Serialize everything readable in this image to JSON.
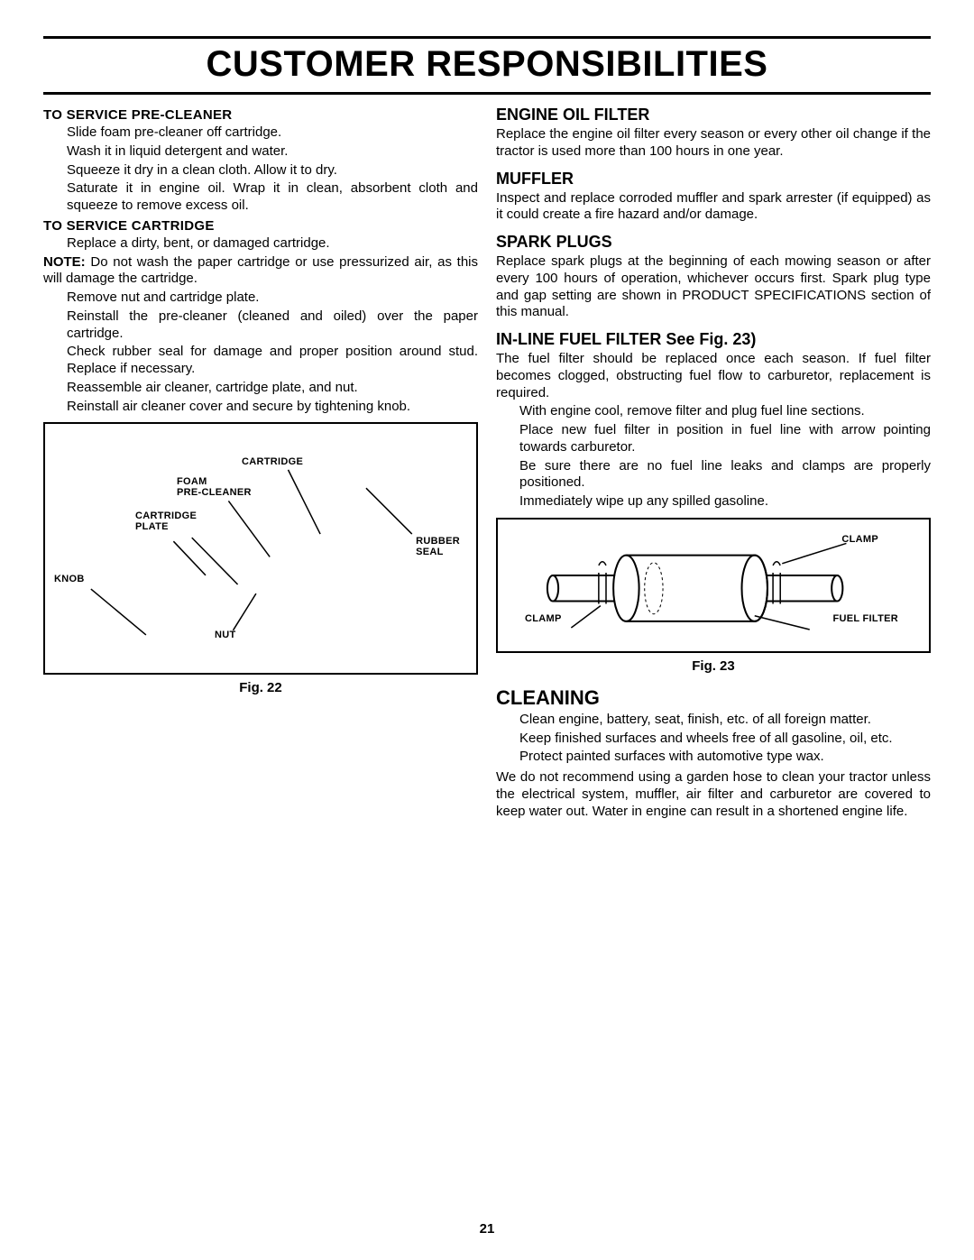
{
  "title": "CUSTOMER RESPONSIBILITIES",
  "page_number": "21",
  "left": {
    "precleaner_head": "TO SERVICE PRE-CLEANER",
    "pre1": "Slide foam pre-cleaner off cartridge.",
    "pre2": "Wash it in liquid detergent and water.",
    "pre3": "Squeeze it dry in a clean cloth.  Allow it to dry.",
    "pre4": "Saturate it in engine oil.  Wrap it in clean, absorbent cloth and squeeze to remove excess oil.",
    "cartridge_head": "TO SERVICE CARTRIDGE",
    "cart1": "Replace a dirty, bent, or damaged cartridge.",
    "note_label": "NOTE:",
    "note_text": " Do not wash the paper cartridge or use pressurized air, as this will damage the cartridge.",
    "cart2": "Remove nut and cartridge plate.",
    "cart3": "Reinstall the pre-cleaner (cleaned and oiled) over the paper cartridge.",
    "cart4": "Check rubber seal for damage and proper position around stud.  Replace if necessary.",
    "cart5": "Reassemble air cleaner, cartridge plate, and nut.",
    "cart6": "Reinstall air cleaner cover and secure by tightening knob.",
    "fig22_caption": "Fig. 22",
    "fig22_labels": {
      "cartridge": "CARTRIDGE",
      "foam": "FOAM\nPRE-CLEANER",
      "plate": "CARTRIDGE\nPLATE",
      "rubber": "RUBBER\nSEAL",
      "knob": "KNOB",
      "nut": "NUT"
    }
  },
  "right": {
    "oil_head": "ENGINE OIL FILTER",
    "oil_text": "Replace the engine oil filter every season or every other oil change if the tractor is used more than 100 hours in one year.",
    "muffler_head": "MUFFLER",
    "muffler_text": "Inspect and replace corroded muffler and spark arrester (if equipped) as it could create a fire hazard and/or damage.",
    "spark_head": "SPARK PLUGS",
    "spark_text": "Replace spark plugs at the beginning of each mowing season or after every 100 hours of operation, whichever occurs first.  Spark plug type and gap setting are shown in  PRODUCT SPECIFICATIONS  section of this manual.",
    "fuel_head": "IN-LINE FUEL FILTER  See Fig. 23)",
    "fuel_text": "The fuel filter should be replaced once each season.  If fuel filter becomes clogged, obstructing fuel flow to carburetor, replacement is required.",
    "fuel1": "With engine cool, remove filter and plug fuel line sections.",
    "fuel2": "Place new fuel filter in position in fuel line with arrow pointing towards carburetor.",
    "fuel3": "Be sure there are no fuel line leaks and clamps are properly positioned.",
    "fuel4": "Immediately wipe up any spilled gasoline.",
    "fig23_caption": "Fig. 23",
    "fig23_labels": {
      "clamp": "CLAMP",
      "fuel_filter": "FUEL  FILTER"
    },
    "cleaning_head": "CLEANING",
    "clean1": "Clean engine, battery, seat, finish, etc. of all foreign matter.",
    "clean2": "Keep finished surfaces and wheels free of all gasoline, oil, etc.",
    "clean3": "Protect painted surfaces with automotive type wax.",
    "clean_para": "We do not recommend using a garden hose to clean your tractor unless the electrical system, muffler, air filter and carburetor are covered to keep water out.  Water in engine can result in a shortened engine life."
  }
}
